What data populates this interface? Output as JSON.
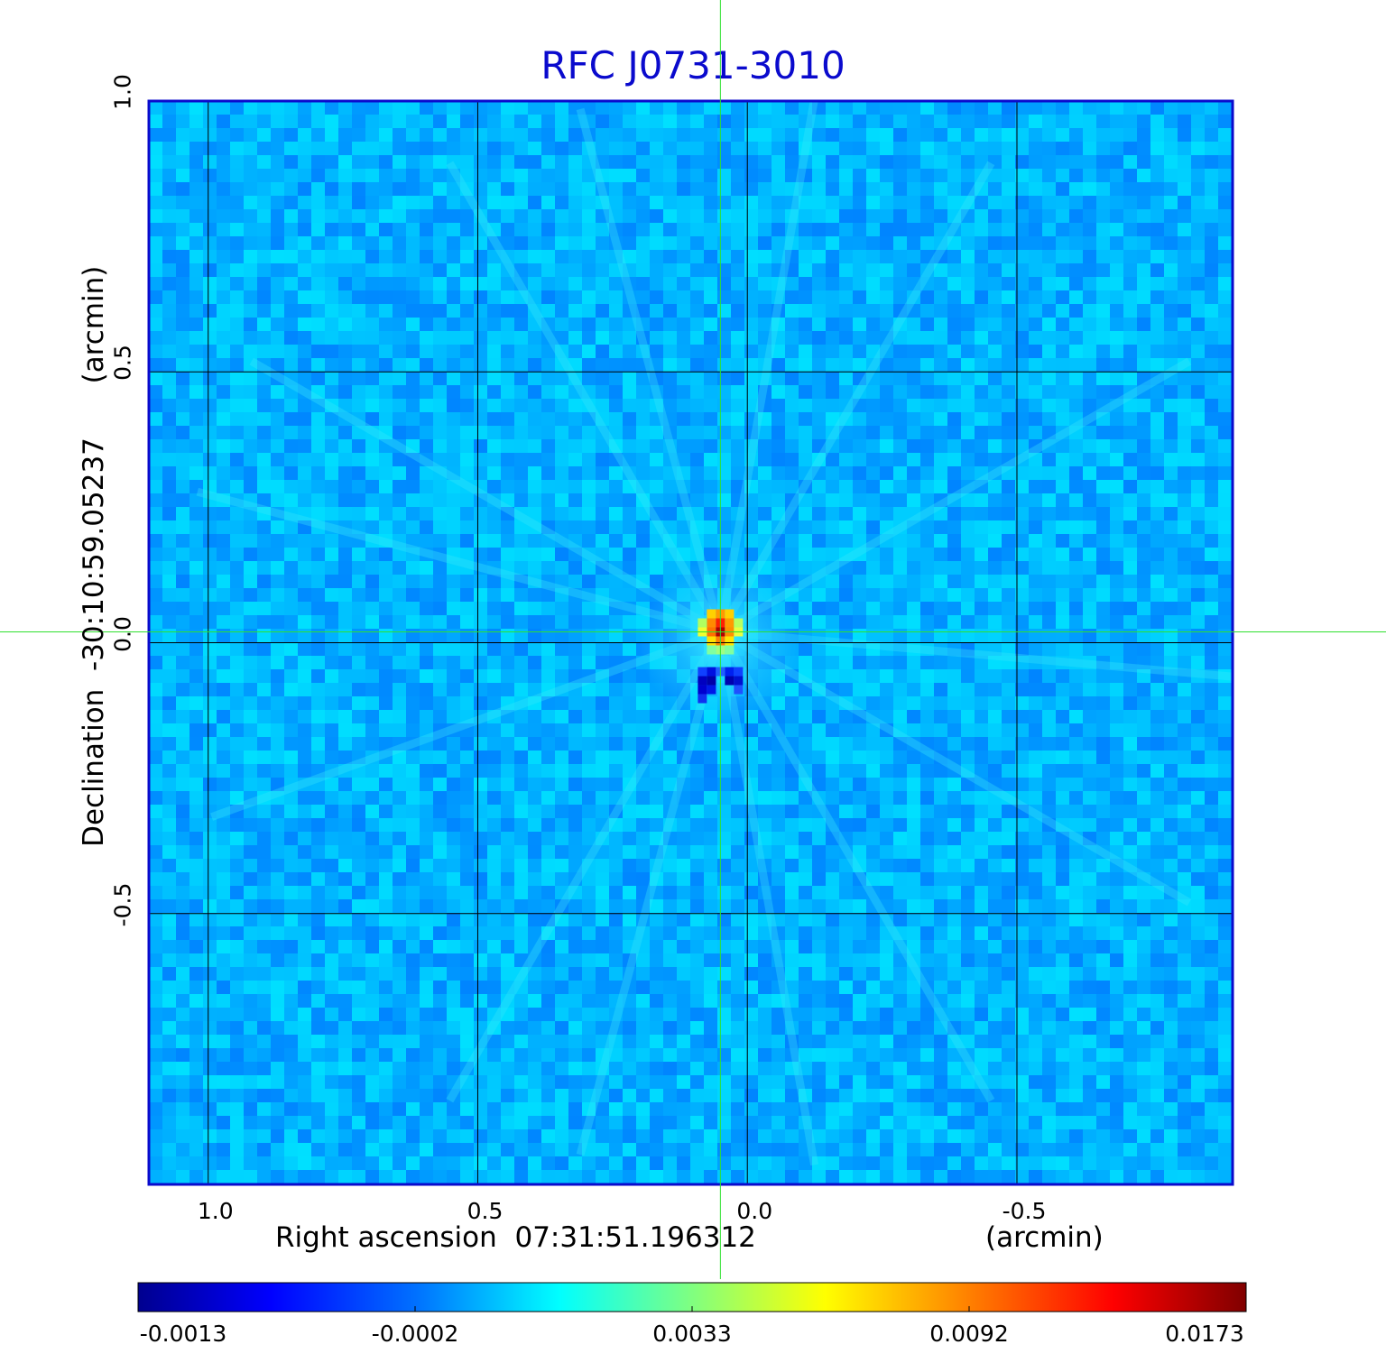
{
  "chart_data": {
    "type": "heatmap",
    "title": "RFC J0731-3010",
    "xlabel": "Right ascension  07:31:51.196312",
    "xunit": "(arcmin)",
    "ylabel": "Declination  -30:10:59.05237",
    "yunit": "(arcmin)",
    "xlim": [
      1.11,
      -0.9
    ],
    "ylim": [
      -1.0,
      1.0
    ],
    "x_ticks": [
      {
        "value": 1.0,
        "label": "1.0"
      },
      {
        "value": 0.5,
        "label": "0.5"
      },
      {
        "value": 0.0,
        "label": "0.0"
      },
      {
        "value": -0.5,
        "label": "-0.5"
      }
    ],
    "y_ticks": [
      {
        "value": -0.5,
        "label": "-0.5"
      },
      {
        "value": 0.0,
        "label": "0.0"
      },
      {
        "value": 0.5,
        "label": "0.5"
      },
      {
        "value": 1.0,
        "label": "1.0"
      }
    ],
    "grid": true,
    "colormap": "jet",
    "colorbar": {
      "position": "bottom",
      "ticks": [
        "-0.0013",
        "-0.0002",
        "0.0033",
        "0.0092",
        "0.0173"
      ],
      "min": -0.0013,
      "max": 0.0173
    },
    "source": {
      "x": 0.05,
      "y": 0.02,
      "peak": 0.0173,
      "negative_lobe": {
        "x": 0.05,
        "y": -0.07,
        "value": -0.0013
      }
    },
    "crosshair": {
      "x": 0.05,
      "y": 0.02,
      "color": "#2ee02e"
    },
    "colors": {
      "frame": "#0a0acd",
      "background_level": "#1e9cf0"
    }
  }
}
